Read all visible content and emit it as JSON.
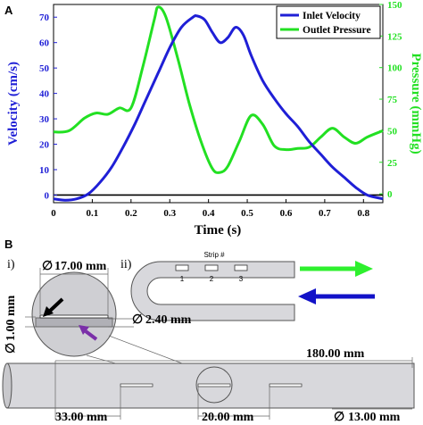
{
  "panel_a": {
    "label": "A",
    "chart_data": {
      "type": "line",
      "xlabel": "Time (s)",
      "ylabel_left": "Velocity (cm/s)",
      "ylabel_right": "Pressure (mmHg)",
      "xlim": [
        0,
        0.85
      ],
      "ylim_left": [
        -3,
        75
      ],
      "ylim_right": [
        -7,
        150
      ],
      "x_ticks": [
        "0",
        "0.1",
        "0.2",
        "0.3",
        "0.4",
        "0.5",
        "0.6",
        "0.7",
        "0.8"
      ],
      "y_left_ticks": [
        "0",
        "10",
        "20",
        "30",
        "40",
        "50",
        "60",
        "70"
      ],
      "y_right_ticks": [
        "0",
        "25",
        "50",
        "75",
        "100",
        "125",
        "150"
      ],
      "legend_position": "top-right",
      "colors": {
        "velocity": "#1f1fd6",
        "pressure": "#22e022",
        "zero_line": "#000000"
      },
      "series": [
        {
          "name": "Inlet Velocity",
          "axis": "left",
          "x": [
            0,
            0.03,
            0.06,
            0.09,
            0.12,
            0.15,
            0.18,
            0.21,
            0.24,
            0.27,
            0.3,
            0.33,
            0.36,
            0.37,
            0.39,
            0.41,
            0.43,
            0.45,
            0.47,
            0.49,
            0.51,
            0.54,
            0.57,
            0.6,
            0.63,
            0.66,
            0.69,
            0.72,
            0.75,
            0.78,
            0.81,
            0.85
          ],
          "values": [
            -1.5,
            -2,
            -1.5,
            0.5,
            5,
            11,
            19,
            28,
            38,
            48,
            58,
            66,
            70,
            70.5,
            69,
            64,
            60,
            62,
            66,
            63,
            55,
            45,
            38,
            32,
            27,
            21,
            16,
            11,
            7,
            3,
            0,
            -1.5
          ]
        },
        {
          "name": "Outlet Pressure",
          "axis": "right",
          "x": [
            0,
            0.04,
            0.08,
            0.11,
            0.14,
            0.17,
            0.2,
            0.23,
            0.26,
            0.27,
            0.29,
            0.32,
            0.35,
            0.38,
            0.41,
            0.43,
            0.45,
            0.48,
            0.51,
            0.54,
            0.57,
            0.6,
            0.63,
            0.66,
            0.69,
            0.72,
            0.75,
            0.78,
            0.81,
            0.85
          ],
          "values": [
            49,
            50,
            60,
            64,
            63,
            68,
            68,
            100,
            138,
            148,
            140,
            108,
            72,
            42,
            20,
            17,
            22,
            42,
            62,
            55,
            38,
            35,
            36,
            37,
            45,
            52,
            45,
            40,
            45,
            50
          ]
        }
      ]
    }
  },
  "panel_b": {
    "label": "B",
    "sub_i": "i)",
    "sub_ii": "ii)",
    "strip_label": "Strip #",
    "strips": [
      "1",
      "2",
      "3"
    ],
    "dim_17": "17.00 mm",
    "dim_240": "2.40 mm",
    "dim_100": "1.00 mm",
    "dim_180": "180.00 mm",
    "dim_33": "33.00 mm",
    "dim_20": "20.00 mm",
    "dim_13": "13.00 mm",
    "diameter_symbol": "∅",
    "colors": {
      "tube_fill": "#d8d8dc",
      "inflow_arrow": "#2ef02e",
      "outflow_arrow": "#1212c8",
      "pointer_black": "#000000",
      "pointer_purple": "#7a2fa8"
    }
  }
}
